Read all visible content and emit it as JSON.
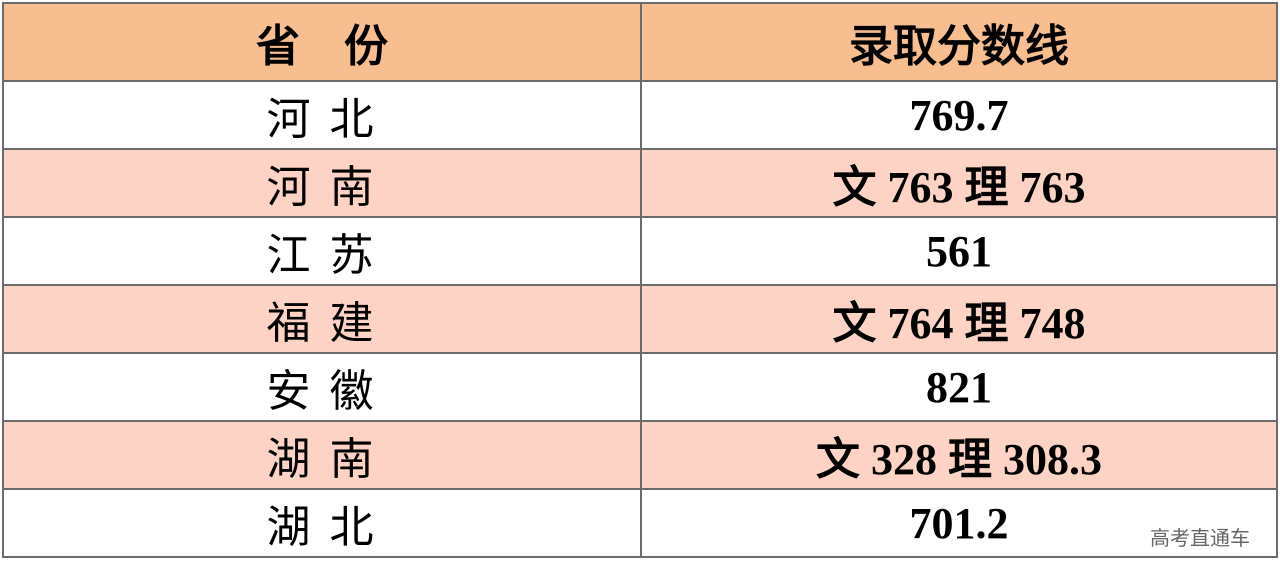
{
  "table": {
    "headers": [
      "省　份",
      "录取分数线"
    ],
    "rows": [
      {
        "province": "河 北",
        "score": "769.7"
      },
      {
        "province": "河 南",
        "score": "文 763 理 763"
      },
      {
        "province": "江 苏",
        "score": "561"
      },
      {
        "province": "福 建",
        "score": "文 764 理 748"
      },
      {
        "province": "安 徽",
        "score": "821"
      },
      {
        "province": "湖 南",
        "score": "文 328 理 308.3"
      },
      {
        "province": "湖 北",
        "score": "701.2"
      }
    ],
    "colors": {
      "header": "#f7be8f",
      "alt_row": "#fdd3c6",
      "border": "#6b6b6b"
    }
  },
  "watermark": "高考直通车"
}
